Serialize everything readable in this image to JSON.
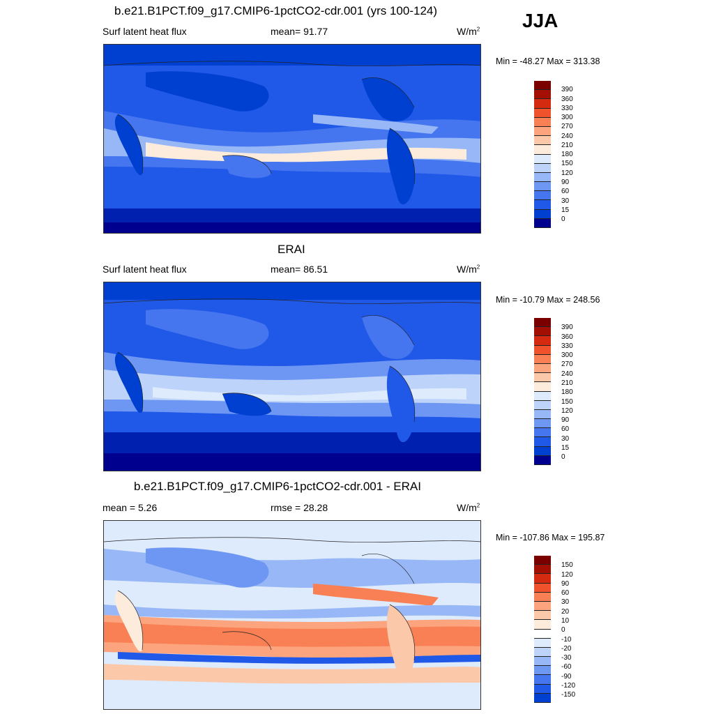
{
  "season": "JJA",
  "colors": {
    "abs_scale": [
      "#00008f",
      "#0021b0",
      "#0040d0",
      "#2058e8",
      "#4576ef",
      "#6e97f4",
      "#97b7f7",
      "#bdd3fa",
      "#deebfd",
      "#fdebdc",
      "#fcc8aa",
      "#fba47e",
      "#f97f54",
      "#f0522c",
      "#d42a10",
      "#a40f04",
      "#7a0000"
    ],
    "diff_scale": [
      "#00008f",
      "#0021b0",
      "#0040d0",
      "#2058e8",
      "#4576ef",
      "#6e97f4",
      "#97b7f7",
      "#bdd3fa",
      "#deebfd",
      "#ffffff",
      "#fdebdc",
      "#fcc8aa",
      "#fba47e",
      "#f97f54",
      "#f0522c",
      "#d42a10",
      "#a40f04",
      "#7a0000"
    ]
  },
  "panels": [
    {
      "title": "b.e21.B1PCT.f09_g17.CMIP6-1pctCO2-cdr.001 (yrs 100-124)",
      "left_label": "Surf latent heat flux",
      "mid_label": "mean=  91.77",
      "unit": "W/m",
      "unit_sup": "2",
      "minmax": "Min = -48.27 Max = 313.38",
      "colorbar_labels": [
        "390",
        "360",
        "330",
        "300",
        "270",
        "240",
        "210",
        "180",
        "150",
        "120",
        "90",
        "60",
        "30",
        "15",
        "0"
      ]
    },
    {
      "title": "ERAI",
      "left_label": "Surf latent heat flux",
      "mid_label": "mean=  86.51",
      "unit": "W/m",
      "unit_sup": "2",
      "minmax": "Min = -10.79 Max = 248.56",
      "colorbar_labels": [
        "390",
        "360",
        "330",
        "300",
        "270",
        "240",
        "210",
        "180",
        "150",
        "120",
        "90",
        "60",
        "30",
        "15",
        "0"
      ]
    },
    {
      "title": "b.e21.B1PCT.f09_g17.CMIP6-1pctCO2-cdr.001 - ERAI",
      "left_label": "mean =   5.26",
      "mid_label": "rmse =  28.28",
      "unit": "W/m",
      "unit_sup": "2",
      "minmax": "Min = -107.86 Max = 195.87",
      "colorbar_labels": [
        "150",
        "120",
        "90",
        "60",
        "30",
        "20",
        "10",
        "0",
        "-10",
        "-20",
        "-30",
        "-60",
        "-90",
        "-120",
        "-150"
      ]
    }
  ]
}
